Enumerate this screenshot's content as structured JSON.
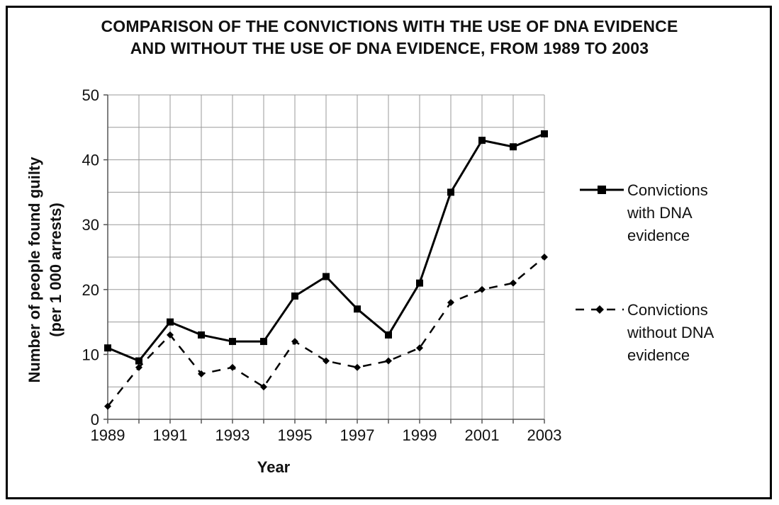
{
  "chart_data": {
    "type": "line",
    "title_lines": [
      "COMPARISON OF THE CONVICTIONS WITH THE USE OF DNA EVIDENCE",
      "AND WITHOUT THE USE OF DNA EVIDENCE, FROM 1989 TO 2003"
    ],
    "xlabel": "Year",
    "ylabel_lines": [
      "Number of people found guilty",
      "(per 1 000 arrests)"
    ],
    "x": [
      1989,
      1990,
      1991,
      1992,
      1993,
      1994,
      1995,
      1996,
      1997,
      1998,
      1999,
      2000,
      2001,
      2002,
      2003
    ],
    "x_tick_labels": [
      "1989",
      "1991",
      "1993",
      "1995",
      "1997",
      "1999",
      "2001",
      "2003"
    ],
    "y_ticks": [
      0,
      10,
      20,
      30,
      40,
      50
    ],
    "xlim": [
      1989,
      2003
    ],
    "ylim": [
      0,
      50
    ],
    "grid": true,
    "legend_position": "right",
    "series": [
      {
        "name_lines": [
          "Convictions",
          "with DNA",
          "evidence"
        ],
        "style": "solid",
        "marker": "square",
        "color": "#000000",
        "values": [
          11,
          9,
          15,
          13,
          12,
          12,
          19,
          22,
          17,
          13,
          21,
          35,
          43,
          42,
          44
        ]
      },
      {
        "name_lines": [
          "Convictions",
          "without DNA",
          "evidence"
        ],
        "style": "dashed",
        "marker": "diamond",
        "color": "#000000",
        "values": [
          2,
          8,
          13,
          7,
          8,
          5,
          12,
          9,
          8,
          9,
          11,
          18,
          20,
          21,
          25
        ]
      }
    ]
  }
}
